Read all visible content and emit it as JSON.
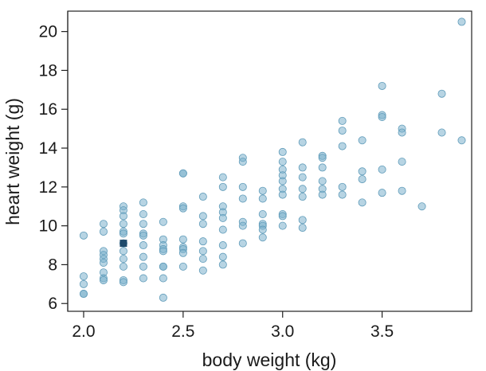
{
  "chart_data": {
    "type": "scatter",
    "title": "",
    "xlabel": "body weight (kg)",
    "ylabel": "heart weight (g)",
    "xlim": [
      1.92,
      3.95
    ],
    "ylim": [
      5.6,
      21.05
    ],
    "x_ticks": [
      "2.0",
      "2.5",
      "3.0",
      "3.5"
    ],
    "x_tick_values": [
      2.0,
      2.5,
      3.0,
      3.5
    ],
    "y_ticks": [
      "6",
      "8",
      "10",
      "12",
      "14",
      "16",
      "18",
      "20"
    ],
    "y_tick_values": [
      6,
      8,
      10,
      12,
      14,
      16,
      18,
      20
    ],
    "grid": false,
    "point_color": "#7bb0cc",
    "point_stroke": "#5f9bb9",
    "highlight_color": "#1f4a6b",
    "series": [
      {
        "points": [
          [
            2.0,
            9.5
          ],
          [
            2.0,
            7.4
          ],
          [
            2.0,
            7.0
          ],
          [
            2.0,
            6.5
          ],
          [
            2.0,
            6.5
          ],
          [
            2.1,
            10.1
          ],
          [
            2.1,
            9.7
          ],
          [
            2.1,
            8.7
          ],
          [
            2.1,
            8.5
          ],
          [
            2.1,
            8.3
          ],
          [
            2.1,
            8.1
          ],
          [
            2.1,
            7.6
          ],
          [
            2.1,
            7.3
          ],
          [
            2.1,
            7.2
          ],
          [
            2.2,
            11.0
          ],
          [
            2.2,
            10.8
          ],
          [
            2.2,
            10.5
          ],
          [
            2.2,
            10.1
          ],
          [
            2.2,
            9.7
          ],
          [
            2.2,
            9.6
          ],
          [
            2.2,
            9.1
          ],
          [
            2.2,
            8.7
          ],
          [
            2.2,
            8.3
          ],
          [
            2.2,
            7.9
          ],
          [
            2.2,
            7.2
          ],
          [
            2.2,
            7.1
          ],
          [
            2.3,
            11.2
          ],
          [
            2.3,
            10.6
          ],
          [
            2.3,
            10.1
          ],
          [
            2.3,
            9.6
          ],
          [
            2.3,
            9.5
          ],
          [
            2.3,
            9.0
          ],
          [
            2.3,
            8.4
          ],
          [
            2.3,
            7.9
          ],
          [
            2.3,
            7.3
          ],
          [
            2.4,
            10.2
          ],
          [
            2.4,
            9.3
          ],
          [
            2.4,
            9.0
          ],
          [
            2.4,
            8.8
          ],
          [
            2.4,
            8.7
          ],
          [
            2.4,
            7.9
          ],
          [
            2.4,
            7.9
          ],
          [
            2.4,
            7.3
          ],
          [
            2.4,
            6.3
          ],
          [
            2.5,
            12.7
          ],
          [
            2.5,
            12.7
          ],
          [
            2.5,
            11.0
          ],
          [
            2.5,
            10.9
          ],
          [
            2.5,
            9.3
          ],
          [
            2.5,
            8.9
          ],
          [
            2.5,
            8.8
          ],
          [
            2.5,
            8.6
          ],
          [
            2.5,
            7.9
          ],
          [
            2.6,
            11.5
          ],
          [
            2.6,
            10.5
          ],
          [
            2.6,
            10.1
          ],
          [
            2.6,
            9.2
          ],
          [
            2.6,
            8.7
          ],
          [
            2.6,
            8.3
          ],
          [
            2.6,
            7.7
          ],
          [
            2.7,
            12.5
          ],
          [
            2.7,
            12.0
          ],
          [
            2.7,
            11.0
          ],
          [
            2.7,
            10.7
          ],
          [
            2.7,
            10.4
          ],
          [
            2.7,
            9.8
          ],
          [
            2.7,
            9.0
          ],
          [
            2.7,
            8.4
          ],
          [
            2.7,
            8.0
          ],
          [
            2.8,
            13.5
          ],
          [
            2.8,
            13.3
          ],
          [
            2.8,
            12.0
          ],
          [
            2.8,
            11.4
          ],
          [
            2.8,
            10.2
          ],
          [
            2.8,
            10.0
          ],
          [
            2.8,
            9.1
          ],
          [
            2.9,
            11.8
          ],
          [
            2.9,
            11.4
          ],
          [
            2.9,
            10.6
          ],
          [
            2.9,
            10.1
          ],
          [
            2.9,
            10.0
          ],
          [
            2.9,
            9.8
          ],
          [
            2.9,
            9.4
          ],
          [
            3.0,
            13.8
          ],
          [
            3.0,
            13.3
          ],
          [
            3.0,
            12.9
          ],
          [
            3.0,
            12.6
          ],
          [
            3.0,
            12.3
          ],
          [
            3.0,
            11.9
          ],
          [
            3.0,
            11.6
          ],
          [
            3.0,
            10.6
          ],
          [
            3.0,
            10.5
          ],
          [
            3.0,
            10.0
          ],
          [
            3.1,
            14.3
          ],
          [
            3.1,
            13.0
          ],
          [
            3.1,
            12.5
          ],
          [
            3.1,
            11.9
          ],
          [
            3.1,
            11.5
          ],
          [
            3.1,
            10.3
          ],
          [
            3.1,
            9.9
          ],
          [
            3.2,
            13.6
          ],
          [
            3.2,
            13.5
          ],
          [
            3.2,
            13.0
          ],
          [
            3.2,
            12.3
          ],
          [
            3.2,
            11.9
          ],
          [
            3.2,
            11.6
          ],
          [
            3.3,
            15.4
          ],
          [
            3.3,
            14.9
          ],
          [
            3.3,
            14.1
          ],
          [
            3.3,
            12.0
          ],
          [
            3.3,
            11.6
          ],
          [
            3.4,
            14.4
          ],
          [
            3.4,
            12.8
          ],
          [
            3.4,
            12.4
          ],
          [
            3.4,
            11.2
          ],
          [
            3.5,
            17.2
          ],
          [
            3.5,
            15.7
          ],
          [
            3.5,
            15.6
          ],
          [
            3.5,
            12.9
          ],
          [
            3.5,
            11.7
          ],
          [
            3.6,
            15.0
          ],
          [
            3.6,
            14.8
          ],
          [
            3.6,
            13.3
          ],
          [
            3.6,
            11.8
          ],
          [
            3.7,
            11.0
          ],
          [
            3.8,
            16.8
          ],
          [
            3.8,
            14.8
          ],
          [
            3.9,
            20.5
          ],
          [
            3.9,
            14.4
          ]
        ]
      }
    ],
    "highlight": {
      "x": 2.2,
      "y": 9.1,
      "marker": "square"
    }
  }
}
